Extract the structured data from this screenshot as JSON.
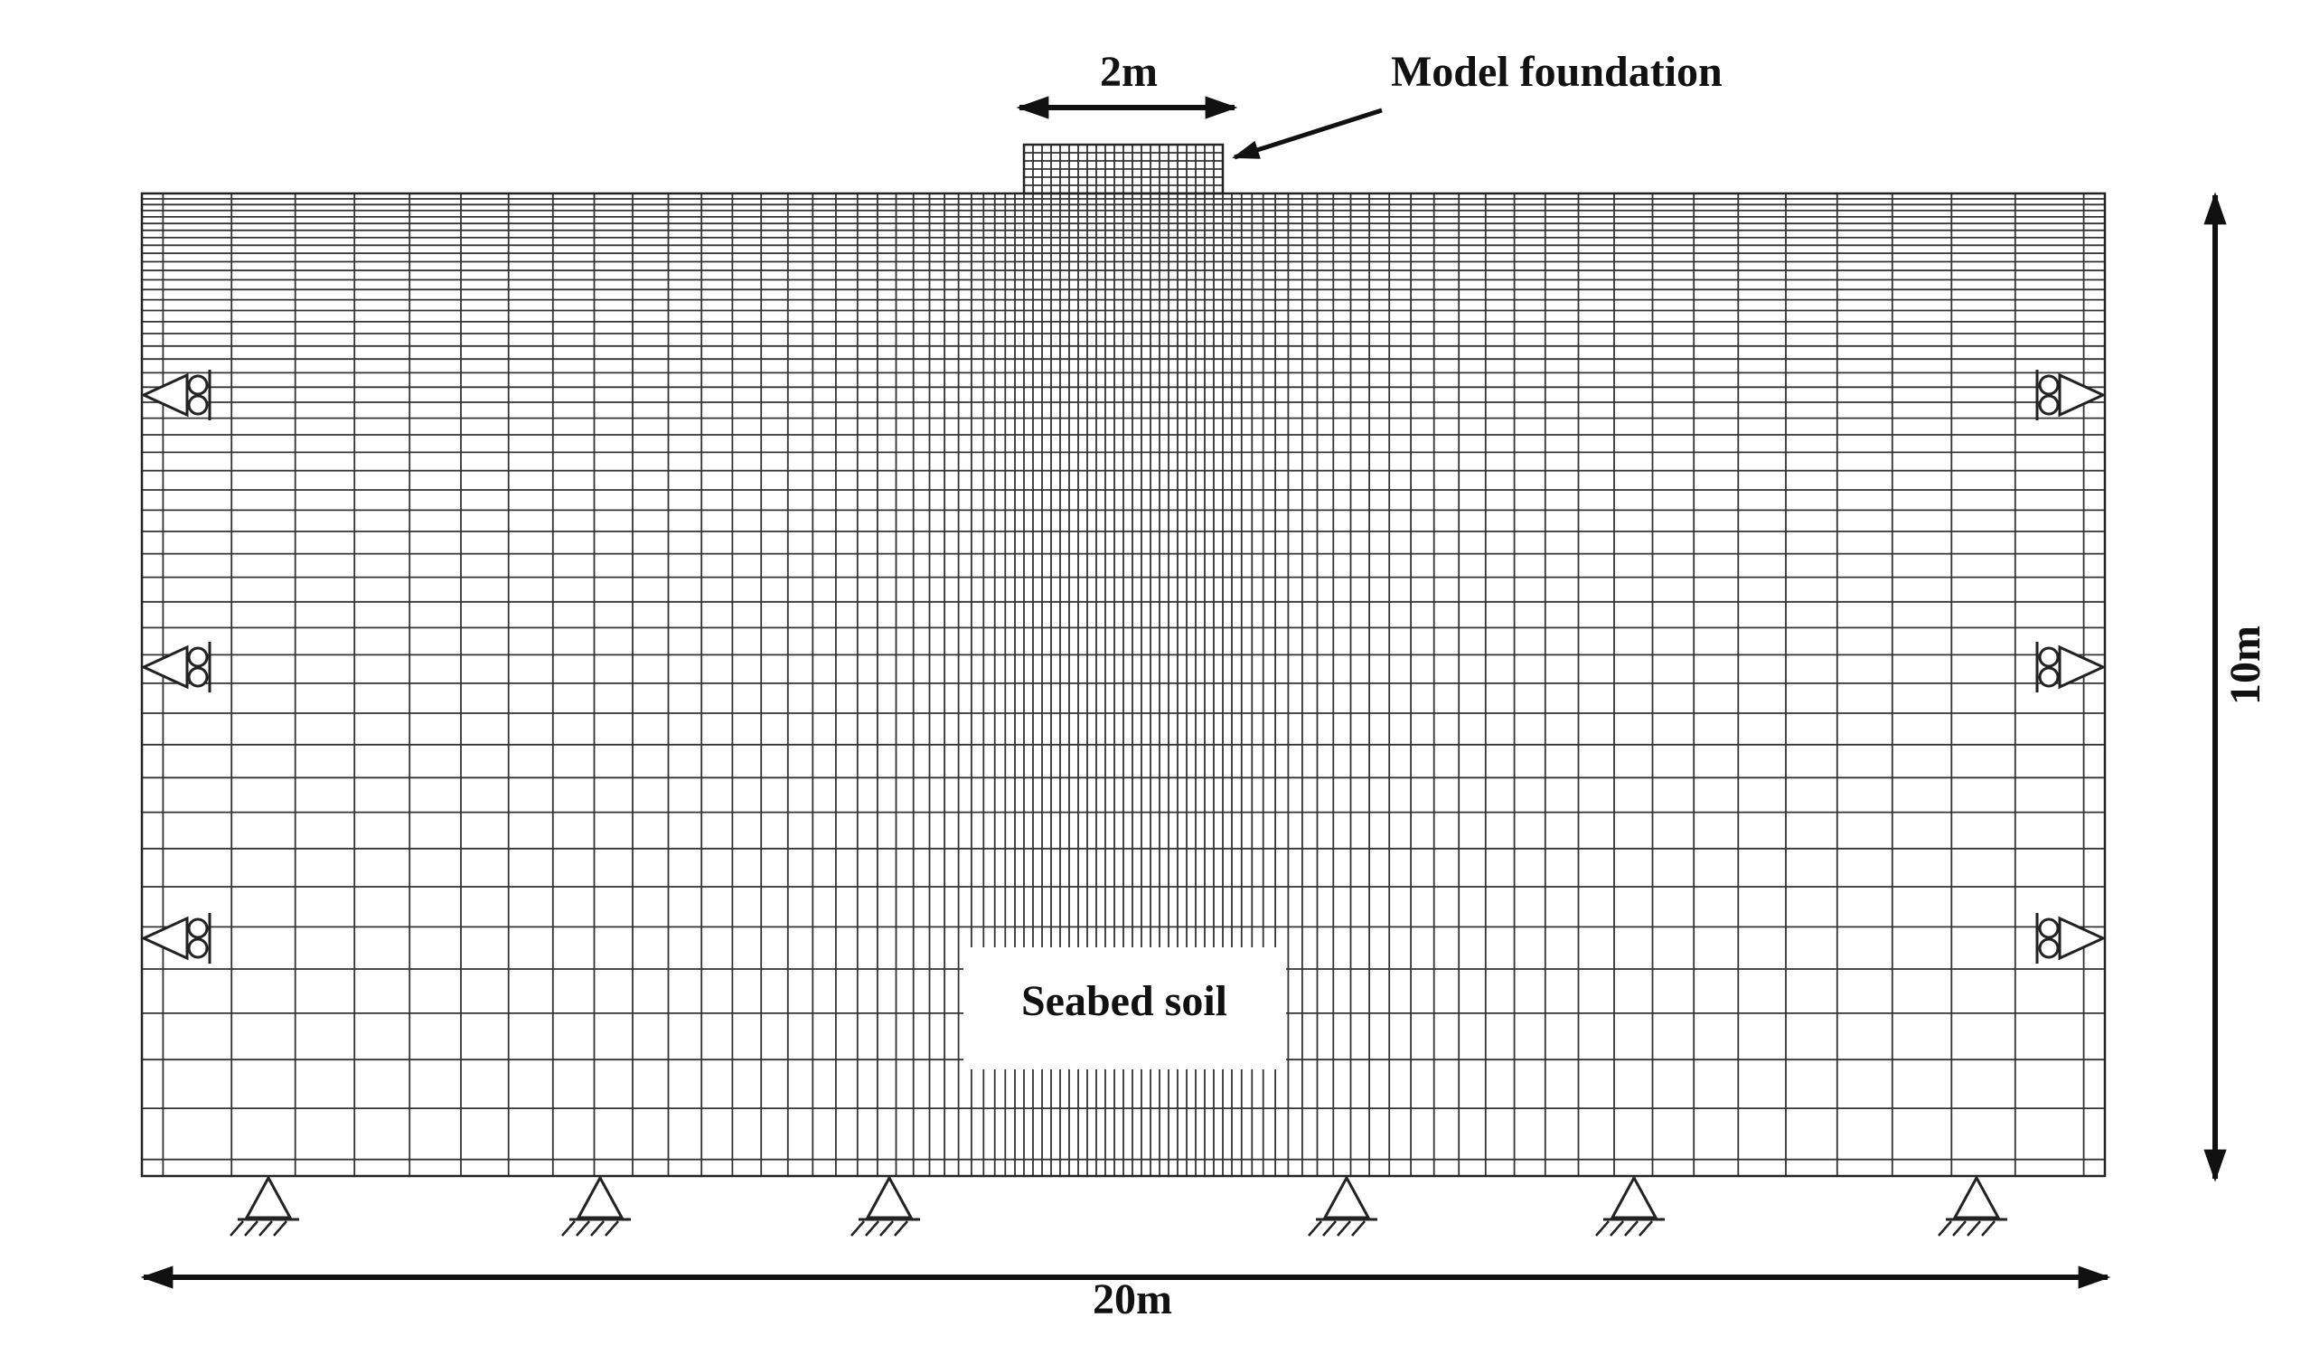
{
  "labels": {
    "foundation_width": "2m",
    "foundation": "Model foundation",
    "height": "10m",
    "soil": "Seabed soil",
    "width": "20m"
  }
}
